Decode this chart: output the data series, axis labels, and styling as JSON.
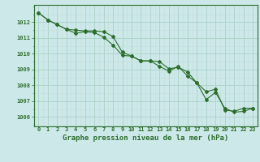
{
  "title": "Graphe pression niveau de la mer (hPa)",
  "background_color": "#cce8e8",
  "grid_major_color": "#b0d4cc",
  "grid_minor_color": "#c4dfd8",
  "line_color": "#2d6e2d",
  "tick_color": "#2d6e2d",
  "x_labels": [
    "0",
    "1",
    "2",
    "3",
    "4",
    "5",
    "6",
    "7",
    "8",
    "9",
    "10",
    "11",
    "12",
    "13",
    "14",
    "15",
    "16",
    "17",
    "18",
    "19",
    "20",
    "21",
    "22",
    "23"
  ],
  "ylim": [
    1005.4,
    1013.1
  ],
  "yticks": [
    1006,
    1007,
    1008,
    1009,
    1010,
    1011,
    1012
  ],
  "series1": [
    1012.6,
    1012.15,
    1011.85,
    1011.55,
    1011.5,
    1011.45,
    1011.45,
    1011.4,
    1011.1,
    1010.1,
    1009.85,
    1009.55,
    1009.55,
    1009.5,
    1009.05,
    1009.15,
    1008.85,
    1008.15,
    1007.6,
    1007.75,
    1006.45,
    1006.35,
    1006.55,
    1006.55
  ],
  "series2": [
    1012.6,
    1012.15,
    1011.85,
    1011.55,
    1011.3,
    1011.4,
    1011.35,
    1011.05,
    1010.55,
    1009.9,
    1009.85,
    1009.55,
    1009.55,
    1009.2,
    1008.9,
    1009.2,
    1008.6,
    1008.15,
    1007.1,
    1007.55,
    1006.55,
    1006.3,
    1006.35,
    1006.55
  ]
}
